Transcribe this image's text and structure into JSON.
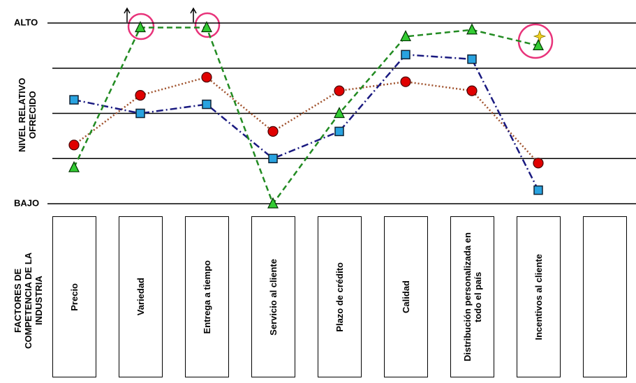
{
  "chart_data": {
    "type": "line",
    "y_label": "NIVEL RELATIVO OFRECIDO",
    "x_label": "FACTORES DE COMPETENCIA DE LA INDUSTRIA",
    "categories": [
      "Precio",
      "Variedad",
      "Entrega a tiempo",
      "Servicio al cliente",
      "Plazo de crédito",
      "Calidad",
      "Distribución personalizada en todo el país",
      "Incentivos al cliente",
      null
    ],
    "series": [
      {
        "color": "#e00000",
        "line_color": "#a0522d",
        "line_style": "dotted",
        "marker": "circle",
        "values": [
          1.3,
          2.4,
          2.8,
          1.6,
          2.5,
          2.7,
          2.5,
          0.9,
          null
        ]
      },
      {
        "color": "#29a3e0",
        "line_color": "#1a1a80",
        "line_style": "dashdot",
        "marker": "square",
        "values": [
          2.3,
          2.0,
          2.2,
          1.0,
          1.6,
          3.3,
          3.2,
          0.3,
          null
        ]
      },
      {
        "color": "#33cc33",
        "line_color": "#228b22",
        "line_style": "dashed",
        "marker": "triangle",
        "values": [
          0.8,
          3.9,
          3.9,
          0,
          2.0,
          3.7,
          3.85,
          3.5,
          null
        ]
      }
    ],
    "ylim": [
      0,
      4
    ],
    "yticks": [
      {
        "value": 0,
        "label": "BAJO"
      },
      {
        "value": 4,
        "label": "ALTO"
      }
    ],
    "ygrid": [
      0,
      1,
      2,
      3,
      4
    ]
  }
}
